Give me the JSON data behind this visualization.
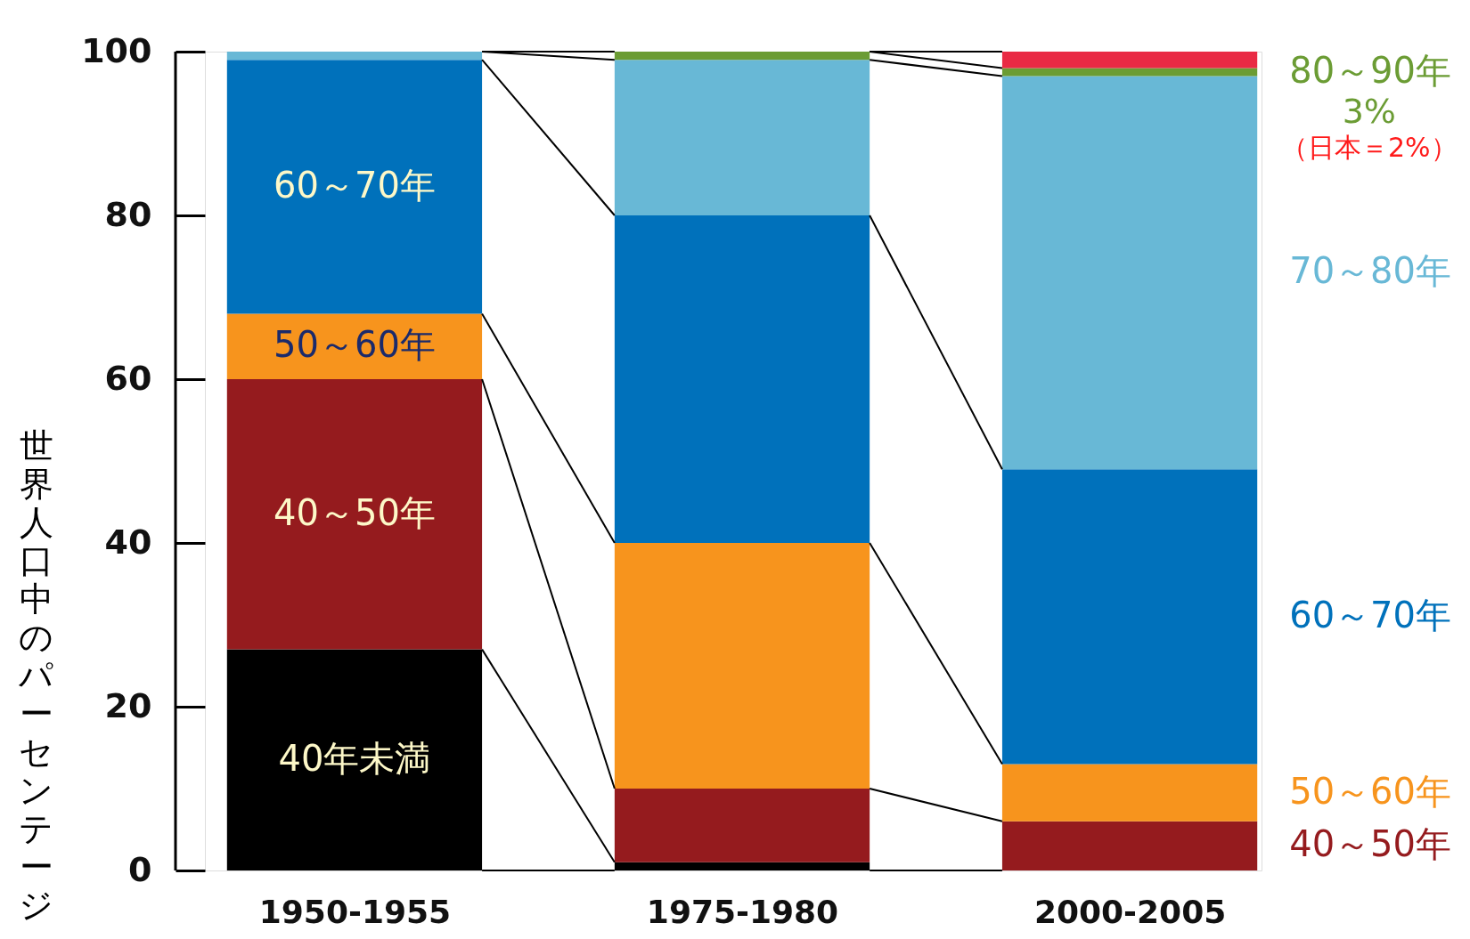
{
  "chart_data": {
    "type": "bar",
    "stacked": true,
    "ylabel": "世界人口中のパーセンテージ",
    "categories": [
      "1950-1955",
      "1975-1980",
      "2000-2005"
    ],
    "ylim": [
      0,
      100
    ],
    "yticks": [
      0,
      20,
      40,
      60,
      80,
      100
    ],
    "series": [
      {
        "name": "40年未満",
        "color": "#000000",
        "values": [
          27,
          1,
          0
        ]
      },
      {
        "name": "40～50年",
        "color": "#951b1e",
        "values": [
          33,
          9,
          6
        ]
      },
      {
        "name": "50～60年",
        "color": "#f7941d",
        "values": [
          8,
          30,
          7
        ]
      },
      {
        "name": "60～70年",
        "color": "#0071bb",
        "values": [
          31,
          40,
          36
        ]
      },
      {
        "name": "70～80年",
        "color": "#68b8d6",
        "values": [
          1,
          19,
          48
        ]
      },
      {
        "name": "80～90年",
        "color": "#6b9c34",
        "values": [
          null,
          1,
          1
        ]
      },
      {
        "color": "#e92a44",
        "values": [
          null,
          null,
          2
        ]
      }
    ],
    "annotations": [
      "3%",
      "（日本＝2%）"
    ]
  }
}
